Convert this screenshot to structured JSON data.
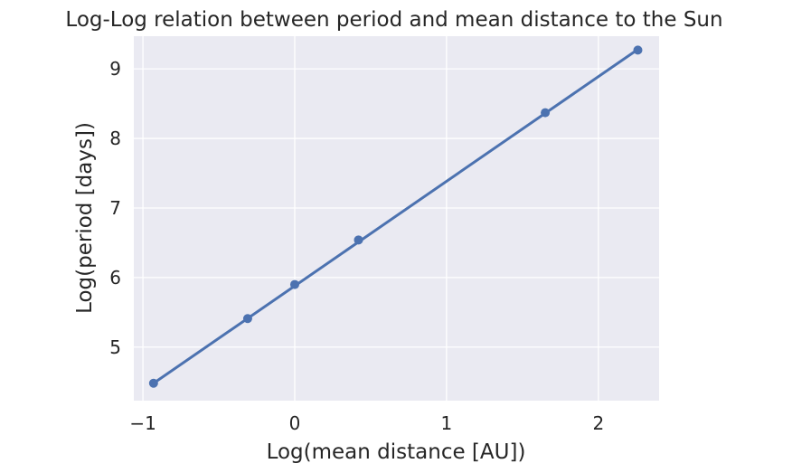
{
  "chart_data": {
    "type": "line",
    "title": "Log-Log relation between period and mean distance to the Sun",
    "xlabel": "Log(mean distance [AU])",
    "ylabel": "Log(period [days])",
    "xlim": [
      -1.06,
      2.4
    ],
    "ylim": [
      4.23,
      9.47
    ],
    "xticks": [
      -1,
      0,
      1,
      2
    ],
    "xtick_labels": [
      "−1",
      "0",
      "1",
      "2"
    ],
    "yticks": [
      5,
      6,
      7,
      8,
      9
    ],
    "ytick_labels": [
      "5",
      "6",
      "7",
      "8",
      "9"
    ],
    "grid": true,
    "colors": {
      "background": "#eaeaf2",
      "grid": "#ffffff",
      "series": "#4c72b0"
    },
    "series": [
      {
        "points": [
          {
            "x": -0.93,
            "y": 4.48
          },
          {
            "x": -0.31,
            "y": 5.41
          },
          {
            "x": 0.0,
            "y": 5.9
          },
          {
            "x": 0.42,
            "y": 6.54
          },
          {
            "x": 1.65,
            "y": 8.37
          },
          {
            "x": 2.26,
            "y": 9.27
          }
        ],
        "fit_line": {
          "x": [
            -0.93,
            2.26
          ],
          "y": [
            4.48,
            9.28
          ]
        }
      }
    ]
  }
}
